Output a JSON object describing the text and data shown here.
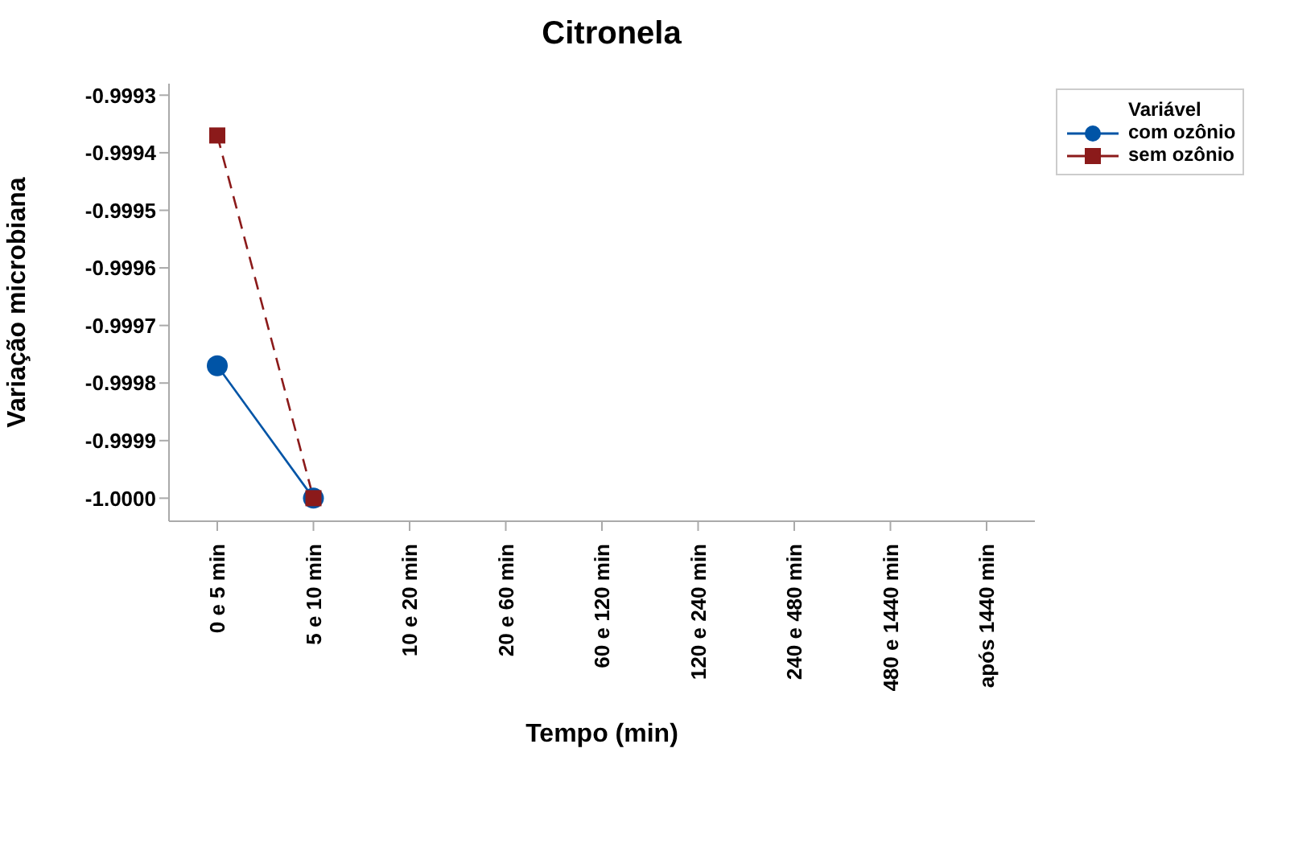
{
  "chart_data": {
    "type": "line",
    "title": "Citronela",
    "xlabel": "Tempo (min)",
    "ylabel": "Variação microbiana",
    "legend_title": "Variável",
    "categories": [
      "0 e 5 min",
      "5 e 10 min",
      "10 e 20 min",
      "20 e 60 min",
      "60 e 120 min",
      "120 e 240 min",
      "240 e 480 min",
      "480 e 1440 min",
      "após 1440 min"
    ],
    "series": [
      {
        "name": "com ozônio",
        "color": "#0054a6",
        "marker": "circle",
        "line_style": "solid",
        "values": [
          -0.99977,
          -1.0,
          null,
          null,
          null,
          null,
          null,
          null,
          null
        ]
      },
      {
        "name": "sem ozônio",
        "color": "#8b1a1a",
        "marker": "square",
        "line_style": "dashed",
        "values": [
          -0.99937,
          -1.0,
          null,
          null,
          null,
          null,
          null,
          null,
          null
        ]
      }
    ],
    "ylim": [
      -1.00004,
      -0.99928
    ],
    "yticks": [
      {
        "value": -1.0,
        "label": "-1.0000"
      },
      -0.9999,
      -0.9998,
      -0.9997,
      -0.9996,
      -0.9995,
      -0.9994,
      -0.9993
    ],
    "grid": false,
    "legend": "top right"
  }
}
